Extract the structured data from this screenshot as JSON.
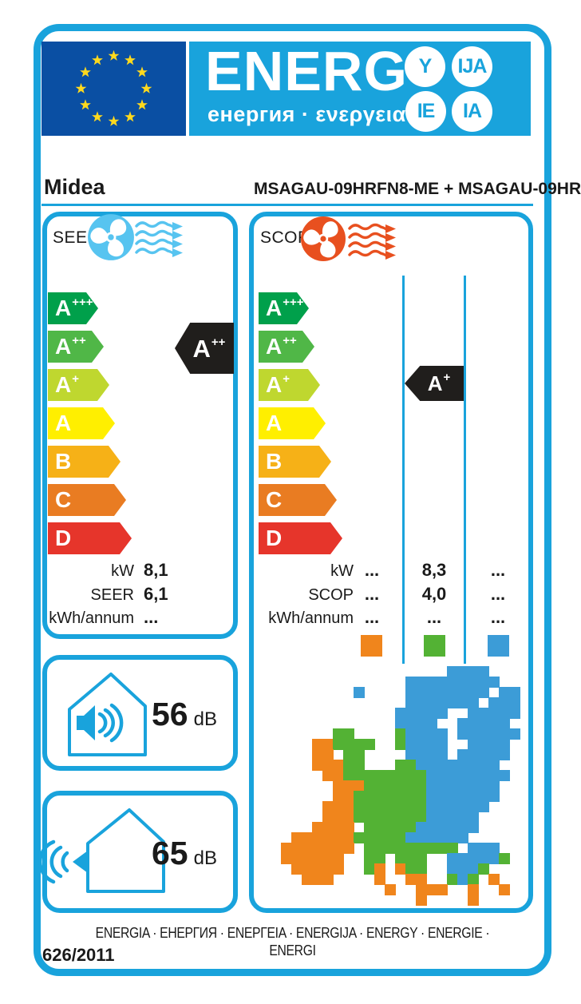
{
  "colors": {
    "accent": "#19A3DC",
    "cool_fan": "#57C4F0",
    "heat_fan": "#E8501F",
    "indicator_black": "#201E1C",
    "eu_flag_bg": "#0A4FA3",
    "eu_star": "#FFD91E",
    "text": "#1A1A1A"
  },
  "header": {
    "logo_text": "ENERG",
    "logo_subtext": "енергия · ενεργεια",
    "suffix_circles": [
      "Y",
      "IJA",
      "IE",
      "IA"
    ],
    "eu_flag": {
      "stars": 12
    }
  },
  "product": {
    "brand": "Midea",
    "model": "MSAGAU-09HRFN8-ME + MSAGAU-09HR"
  },
  "energy_scale": {
    "classes": [
      {
        "grade": "A",
        "sup": "+++",
        "color": "#00A04B"
      },
      {
        "grade": "A",
        "sup": "++",
        "color": "#50B747"
      },
      {
        "grade": "A",
        "sup": "+",
        "color": "#BFD72F"
      },
      {
        "grade": "A",
        "sup": "",
        "color": "#FFEF00"
      },
      {
        "grade": "B",
        "sup": "",
        "color": "#F6B117"
      },
      {
        "grade": "C",
        "sup": "",
        "color": "#E97C22"
      },
      {
        "grade": "D",
        "sup": "",
        "color": "#E6352B"
      }
    ]
  },
  "cooling": {
    "section_label": "SEER",
    "rating": {
      "grade": "A",
      "sup": "++"
    },
    "rows": [
      {
        "label": "kW",
        "value": "8,1"
      },
      {
        "label": "SEER",
        "value": "6,1"
      },
      {
        "label": "kWh/annum",
        "value": "..."
      }
    ]
  },
  "heating": {
    "section_label": "SCOP",
    "rating": {
      "grade": "A",
      "sup": "+"
    },
    "row_labels": [
      "kW",
      "SCOP",
      "kWh/annum"
    ],
    "zones": [
      {
        "name": "warmer climate zone",
        "color": "#F0851C",
        "values": [
          "...",
          "...",
          "..."
        ]
      },
      {
        "name": "average climate zone",
        "color": "#53B234",
        "values": [
          "8,3",
          "4,0",
          "..."
        ]
      },
      {
        "name": "colder climate zone",
        "color": "#3C9CD7",
        "values": [
          "...",
          "...",
          "..."
        ]
      }
    ]
  },
  "noise": {
    "indoor": {
      "value": "56",
      "unit": "dB"
    },
    "outdoor": {
      "value": "65",
      "unit": "dB"
    }
  },
  "footer": {
    "energy_words": "ENERGIA · ЕНЕРГИЯ · ΕΝΕΡΓΕΙΑ · ENERGIJA · ENERGY · ENERGIE · ENERGI",
    "regulation": "626/2011"
  },
  "europe_map": {
    "cell": 13,
    "colors": {
      "o": "#F0851C",
      "g": "#53B234",
      "b": "#3C9CD7"
    },
    "rows": [
      "................bbbb......",
      "............bbbbbbbbb.....",
      ".......b....bbbbbbbb.bb...",
      "............bbbbbbb.bbb...",
      "...........bbbbb..bbbbb...",
      "...........bbbb..bbbbb....",
      ".....gg....gbbbb.bbbbbb...",
      "...oogggg..gbbbb..bbbb....",
      "...oo.gg....bbbb.bbbbb....",
      "...ooogg...ggbbbbbbbb.....",
      "....ooggggggggbbbbbbbb....",
      ".....oooggggggbbbbbbb.....",
      ".....oogggggggbbbbbbb.....",
      "....ooogggggggbbbbbb......",
      "....ooogggggggbbbbb.......",
      "...oooo.gggggbbbbbb.......",
      ".oooooogggggbbbbbb........",
      "ooooooo.ggggggggg.bbb.....",
      "oooooo..gg.ggg..bbbbbg....",
      ".ooooo..go.ogg..bbbg......",
      "..ooo....o..oo..gbg.o.....",
      "..........o..ooo..o..o....",
      ".............o....o......."
    ]
  }
}
